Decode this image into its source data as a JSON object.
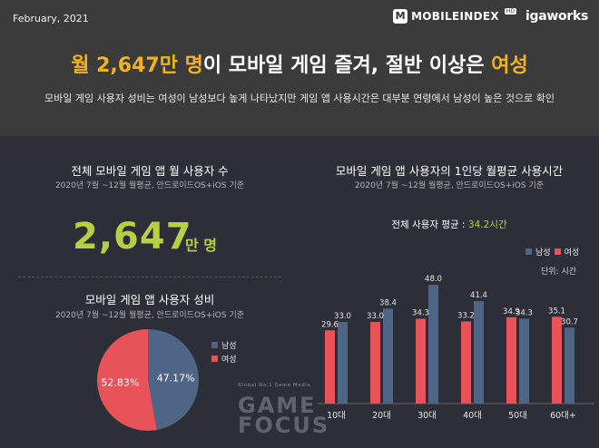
{
  "header": {
    "date": "February, 2021",
    "brand_mobileindex": "MOBILEINDEX",
    "brand_hd": "HD",
    "brand_igaworks": "igaworks"
  },
  "headline": {
    "part1": "월 2,647만 명",
    "part2": "이 모바일 게임 즐겨, 절반 이상은 ",
    "part3": "여성"
  },
  "subline": "모바일 게임 사용자 성비는 여성이  남성보다 높게 나타났지만 게임 앱 사용시간은 대부분 연령에서 남성이 높은 것으로 확인",
  "users": {
    "title": "전체 모바일 게임 앱  월 사용자 수",
    "subtitle": "2020년 7월 ~12월 월평균, 안드로이드OS+iOS 기준",
    "value": "2,647",
    "unit": "만 명"
  },
  "gender": {
    "title": "모바일 게임 앱 사용자 성비",
    "subtitle": "2020년 7월 ~12월 월평균, 안드로이드OS+iOS 기준"
  },
  "usage": {
    "title": "모바일 게임 앱 사용자의 1인당 월평균 사용시간",
    "subtitle": "2020년 7월 ~12월 월평균, 안드로이드OS+iOS 기준",
    "avg_label": "전체 사용자 평균 : ",
    "avg_value": "34.2시간",
    "unit_note": "단위: 시간"
  },
  "watermark": {
    "small": "Global No.1 Game Media",
    "line1": "GAME",
    "line2": "FOCUS"
  },
  "colors": {
    "male": "#4e6585",
    "female": "#e8535a",
    "accent": "#f5b21b",
    "green": "#b7cf44"
  },
  "chart_data": [
    {
      "type": "pie",
      "title": "모바일 게임 앱 사용자 성비",
      "series": [
        {
          "name": "남성",
          "value": 47.17,
          "label": "47.17%"
        },
        {
          "name": "여성",
          "value": 52.83,
          "label": "52.83%"
        }
      ],
      "legend": [
        "남성",
        "여성"
      ],
      "legend_placement": "right"
    },
    {
      "type": "bar",
      "title": "모바일 게임 앱 사용자의 1인당 월평균 사용시간",
      "categories": [
        "10대",
        "20대",
        "30대",
        "40대",
        "50대",
        "60대+"
      ],
      "series": [
        {
          "name": "남성",
          "values": [
            33.0,
            38.4,
            48.0,
            41.4,
            34.3,
            30.7
          ]
        },
        {
          "name": "여성",
          "values": [
            29.6,
            33.0,
            34.3,
            33.2,
            34.9,
            35.1
          ]
        }
      ],
      "legend": [
        "남성",
        "여성"
      ],
      "legend_placement": "top-right",
      "unit": "단위: 시간",
      "ylim": [
        0,
        55
      ],
      "grid": false
    }
  ]
}
